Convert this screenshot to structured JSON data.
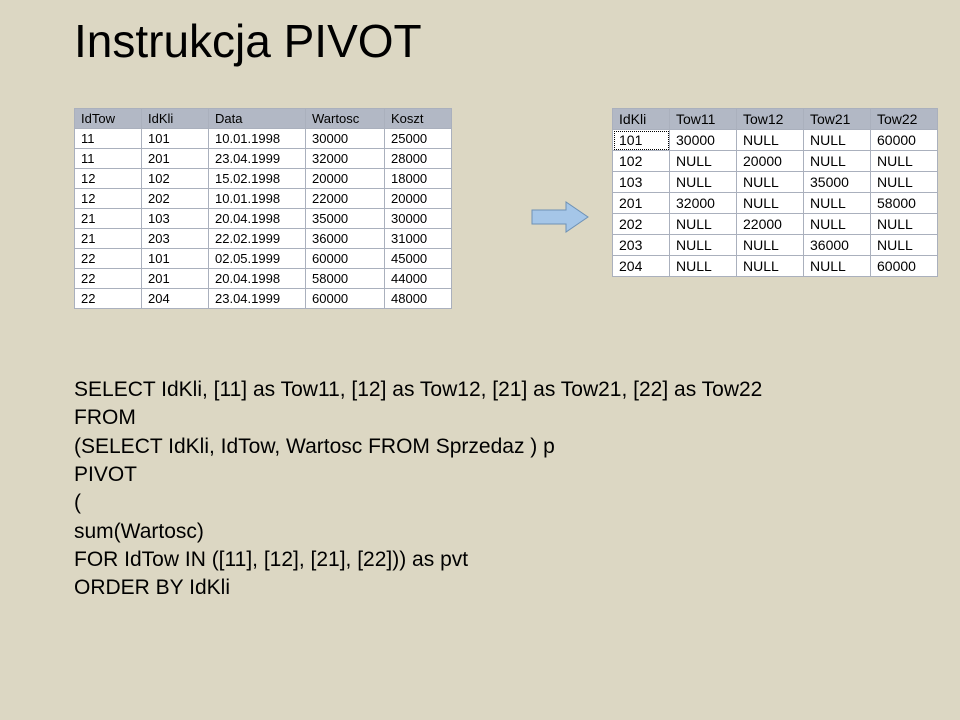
{
  "title": "Instrukcja PIVOT",
  "left_table": {
    "headers": [
      "IdTow",
      "IdKli",
      "Data",
      "Wartosc",
      "Koszt"
    ],
    "rows": [
      [
        "11",
        "101",
        "10.01.1998",
        "30000",
        "25000"
      ],
      [
        "11",
        "201",
        "23.04.1999",
        "32000",
        "28000"
      ],
      [
        "12",
        "102",
        "15.02.1998",
        "20000",
        "18000"
      ],
      [
        "12",
        "202",
        "10.01.1998",
        "22000",
        "20000"
      ],
      [
        "21",
        "103",
        "20.04.1998",
        "35000",
        "30000"
      ],
      [
        "21",
        "203",
        "22.02.1999",
        "36000",
        "31000"
      ],
      [
        "22",
        "101",
        "02.05.1999",
        "60000",
        "45000"
      ],
      [
        "22",
        "201",
        "20.04.1998",
        "58000",
        "44000"
      ],
      [
        "22",
        "204",
        "23.04.1999",
        "60000",
        "48000"
      ]
    ],
    "header_bg": "#b2b8c5",
    "row_bg_alt": "#b2b8c5",
    "border_color": "#aab0bd"
  },
  "right_table": {
    "headers": [
      "IdKli",
      "Tow11",
      "Tow12",
      "Tow21",
      "Tow22"
    ],
    "rows": [
      [
        "101",
        "30000",
        "NULL",
        "NULL",
        "60000"
      ],
      [
        "102",
        "NULL",
        "20000",
        "NULL",
        "NULL"
      ],
      [
        "103",
        "NULL",
        "NULL",
        "35000",
        "NULL"
      ],
      [
        "201",
        "32000",
        "NULL",
        "NULL",
        "58000"
      ],
      [
        "202",
        "NULL",
        "22000",
        "NULL",
        "NULL"
      ],
      [
        "203",
        "NULL",
        "NULL",
        "36000",
        "NULL"
      ],
      [
        "204",
        "NULL",
        "NULL",
        "NULL",
        "60000"
      ]
    ],
    "selected_cell": [
      0,
      0
    ]
  },
  "arrow": {
    "fill": "#a5c6e8",
    "stroke": "#6e92b6"
  },
  "sql": {
    "lines": [
      "SELECT IdKli, [11] as Tow11, [12] as Tow12, [21] as Tow21, [22] as Tow22",
      "FROM",
      "(SELECT IdKli, IdTow, Wartosc FROM Sprzedaz ) p",
      "PIVOT",
      "(",
      "sum(Wartosc)",
      "FOR IdTow IN ([11], [12], [21], [22])) as pvt",
      "ORDER BY IdKli"
    ]
  },
  "colors": {
    "background": "#dcd7c3",
    "text": "#000000"
  }
}
